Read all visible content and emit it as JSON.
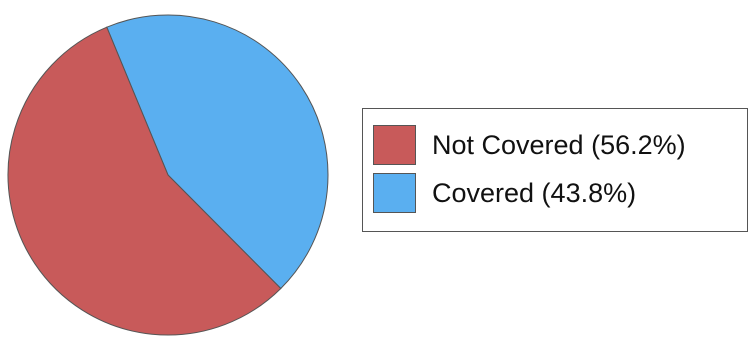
{
  "chart_data": {
    "type": "pie",
    "title": "",
    "slices": [
      {
        "label": "Not Covered (56.2%)",
        "value": 56.2,
        "color": "#c85a5a"
      },
      {
        "label": "Covered (43.8%)",
        "value": 43.8,
        "color": "#5aaff0"
      }
    ],
    "legend": {
      "placement": "right",
      "items": [
        {
          "label": "Not Covered (56.2%)",
          "color": "#c85a5a"
        },
        {
          "label": "Covered (43.8%)",
          "color": "#5aaff0"
        }
      ]
    }
  }
}
